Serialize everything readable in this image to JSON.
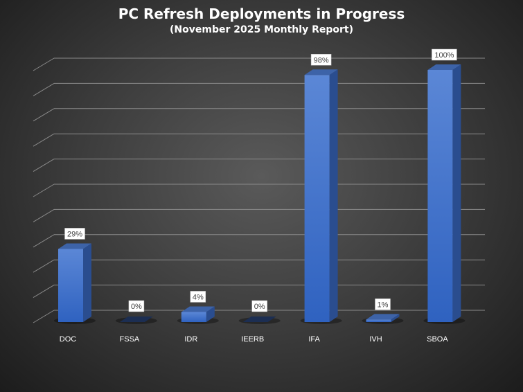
{
  "chart_data": {
    "type": "bar",
    "style": "3d-column",
    "title": "PC Refresh Deployments in Progress",
    "subtitle": "(November 2025 Monthly Report)",
    "categories": [
      "DOC",
      "FSSA",
      "IDR",
      "IEERB",
      "IFA",
      "IVH",
      "SBOA"
    ],
    "values": [
      29,
      0,
      4,
      0,
      98,
      1,
      100
    ],
    "data_labels": [
      "29%",
      "0%",
      "4%",
      "0%",
      "98%",
      "1%",
      "100%"
    ],
    "ylim": [
      0,
      100
    ],
    "grid": true,
    "legend": "none",
    "colors": {
      "bar": "#4472c4",
      "background": "#404040",
      "text": "#ffffff"
    }
  }
}
